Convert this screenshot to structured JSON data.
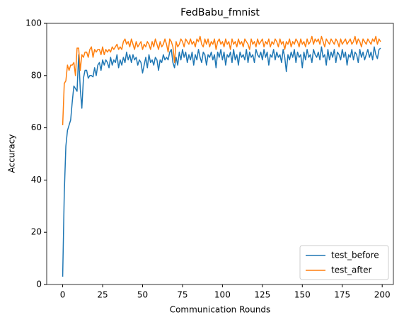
{
  "chart_data": {
    "type": "line",
    "title": "FedBabu_fmnist",
    "xlabel": "Communication Rounds",
    "ylabel": "Accuracy",
    "x": [
      0,
      1,
      2,
      3,
      4,
      5,
      6,
      7,
      8,
      9,
      10,
      11,
      12,
      13,
      14,
      15,
      16,
      17,
      18,
      19,
      20,
      21,
      22,
      23,
      24,
      25,
      26,
      27,
      28,
      29,
      30,
      31,
      32,
      33,
      34,
      35,
      36,
      37,
      38,
      39,
      40,
      41,
      42,
      43,
      44,
      45,
      46,
      47,
      48,
      49,
      50,
      51,
      52,
      53,
      54,
      55,
      56,
      57,
      58,
      59,
      60,
      61,
      62,
      63,
      64,
      65,
      66,
      67,
      68,
      69,
      70,
      71,
      72,
      73,
      74,
      75,
      76,
      77,
      78,
      79,
      80,
      81,
      82,
      83,
      84,
      85,
      86,
      87,
      88,
      89,
      90,
      91,
      92,
      93,
      94,
      95,
      96,
      97,
      98,
      99,
      100,
      101,
      102,
      103,
      104,
      105,
      106,
      107,
      108,
      109,
      110,
      111,
      112,
      113,
      114,
      115,
      116,
      117,
      118,
      119,
      120,
      121,
      122,
      123,
      124,
      125,
      126,
      127,
      128,
      129,
      130,
      131,
      132,
      133,
      134,
      135,
      136,
      137,
      138,
      139,
      140,
      141,
      142,
      143,
      144,
      145,
      146,
      147,
      148,
      149,
      150,
      151,
      152,
      153,
      154,
      155,
      156,
      157,
      158,
      159,
      160,
      161,
      162,
      163,
      164,
      165,
      166,
      167,
      168,
      169,
      170,
      171,
      172,
      173,
      174,
      175,
      176,
      177,
      178,
      179,
      180,
      181,
      182,
      183,
      184,
      185,
      186,
      187,
      188,
      189,
      190,
      191,
      192,
      193,
      194,
      195,
      196,
      197,
      198,
      199
    ],
    "series": [
      {
        "name": "test_before",
        "color": "#1f77b4",
        "values": [
          3,
          35,
          53,
          59,
          61,
          63,
          70,
          76,
          75,
          74,
          88,
          75,
          67.5,
          79,
          82,
          82,
          79,
          80,
          80,
          79.5,
          83,
          80,
          84,
          85,
          82,
          86,
          84,
          86,
          85,
          83,
          87,
          84,
          86,
          85,
          88,
          83,
          86,
          84,
          87,
          85,
          89,
          86,
          88,
          85,
          88,
          86,
          87,
          84,
          86,
          85,
          81,
          84,
          87,
          83,
          88,
          85,
          86,
          84,
          87,
          86,
          82,
          86,
          85,
          88,
          86,
          87,
          86,
          89,
          90,
          85,
          83,
          87,
          84,
          89,
          86,
          90,
          87,
          89,
          85,
          88,
          86,
          89,
          84,
          88,
          86,
          90,
          87,
          85,
          89,
          88,
          84,
          88,
          87,
          89,
          86,
          88,
          83,
          89,
          87,
          90,
          86,
          89,
          84,
          88,
          87,
          89,
          85,
          90,
          86,
          88,
          84,
          89,
          87,
          88,
          86,
          90,
          85,
          89,
          87,
          88,
          85,
          90,
          88,
          87,
          89,
          86,
          90,
          87,
          89,
          84,
          88,
          87,
          90,
          86,
          89,
          87,
          88,
          85,
          90,
          87,
          81.5,
          88,
          86,
          89,
          87,
          90,
          85,
          89,
          87,
          88,
          83,
          89,
          86,
          90,
          87,
          88,
          85,
          90,
          88,
          87,
          89,
          86,
          91,
          87,
          88,
          84,
          90,
          86,
          89,
          87,
          90,
          85,
          89,
          88,
          86,
          90,
          87,
          89,
          84,
          88,
          87,
          90,
          86,
          89,
          88,
          85,
          90,
          87,
          89,
          86,
          88,
          90,
          87,
          89,
          86,
          91,
          88,
          86.5,
          90,
          90.5
        ]
      },
      {
        "name": "test_after",
        "color": "#ff7f0e",
        "values": [
          61,
          77,
          78,
          84,
          82,
          84,
          84,
          85,
          80,
          90.5,
          90.5,
          82,
          88,
          87,
          89,
          89,
          87,
          90,
          91,
          87,
          90,
          89,
          90,
          90,
          88,
          91,
          88,
          90,
          89,
          90,
          89,
          91,
          90,
          91,
          92,
          90,
          91,
          90,
          93,
          94,
          92,
          93,
          91,
          94,
          92,
          90,
          93,
          91,
          92,
          93,
          90,
          92,
          91,
          93,
          92,
          90,
          93,
          91,
          94,
          92,
          90,
          93,
          91,
          92,
          94,
          92,
          89,
          94,
          93,
          91,
          85,
          93,
          91,
          92,
          94,
          93,
          91,
          94,
          93,
          92,
          94,
          92,
          93,
          91,
          94,
          93,
          95,
          92,
          91,
          94,
          92,
          94,
          91,
          93,
          92,
          94,
          90,
          93,
          94,
          92,
          93,
          91,
          94,
          92,
          93,
          90,
          94,
          92,
          93,
          91,
          94,
          92,
          93,
          91,
          94,
          93,
          92,
          90,
          94,
          92,
          93,
          91,
          94,
          92,
          93,
          94,
          91,
          93,
          92,
          94,
          91,
          93,
          92,
          94,
          93,
          91,
          94,
          92,
          93,
          90,
          93,
          92,
          94,
          91,
          93,
          92,
          94,
          93,
          91,
          94,
          92,
          93,
          91,
          94,
          92,
          93,
          95,
          92,
          94,
          93,
          94,
          92,
          95,
          93,
          91,
          94,
          93,
          92,
          94,
          93,
          92,
          94,
          93,
          91,
          94,
          92,
          93,
          94,
          92,
          93,
          94,
          92,
          93,
          95,
          92,
          94,
          93,
          91,
          94,
          93,
          92,
          94,
          93,
          92,
          94,
          93,
          95,
          92,
          94,
          93
        ]
      }
    ],
    "xlim": [
      -10,
      207
    ],
    "ylim": [
      0,
      100
    ],
    "xticks": [
      0,
      25,
      50,
      75,
      100,
      125,
      150,
      175,
      200
    ],
    "yticks": [
      0,
      20,
      40,
      60,
      80,
      100
    ],
    "grid": false,
    "legend": "lower right"
  }
}
